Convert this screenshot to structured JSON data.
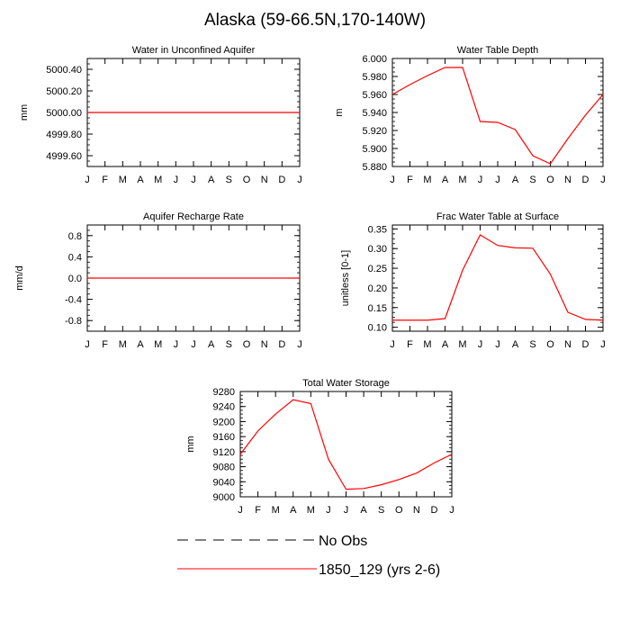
{
  "title": "Alaska (59-66.5N,170-140W)",
  "months": [
    "J",
    "F",
    "M",
    "A",
    "M",
    "J",
    "J",
    "A",
    "S",
    "O",
    "N",
    "D",
    "J"
  ],
  "colors": {
    "model": "#ff0000",
    "obs": "#000000",
    "axis": "#000000"
  },
  "chart_data": [
    {
      "type": "line",
      "title": "Water in Unconfined Aquifer",
      "ylabel": "mm",
      "ylim": [
        4999.5,
        5000.5
      ],
      "yticks": [
        "5000.40",
        "5000.20",
        "5000.00",
        "4999.80",
        "4999.60"
      ],
      "ytick_values": [
        5000.4,
        5000.2,
        5000.0,
        4999.8,
        4999.6
      ],
      "categories": [
        "J",
        "F",
        "M",
        "A",
        "M",
        "J",
        "J",
        "A",
        "S",
        "O",
        "N",
        "D",
        "J"
      ],
      "series": [
        {
          "name": "1850_129 (yrs 2-6)",
          "values": [
            5000,
            5000,
            5000,
            5000,
            5000,
            5000,
            5000,
            5000,
            5000,
            5000,
            5000,
            5000,
            5000
          ]
        }
      ]
    },
    {
      "type": "line",
      "title": "Water Table Depth",
      "ylabel": "m",
      "ylim": [
        5.88,
        6.0
      ],
      "yticks": [
        "6.000",
        "5.980",
        "5.960",
        "5.940",
        "5.920",
        "5.900",
        "5.880"
      ],
      "ytick_values": [
        6.0,
        5.98,
        5.96,
        5.94,
        5.92,
        5.9,
        5.88
      ],
      "categories": [
        "J",
        "F",
        "M",
        "A",
        "M",
        "J",
        "J",
        "A",
        "S",
        "O",
        "N",
        "D",
        "J"
      ],
      "series": [
        {
          "name": "1850_129 (yrs 2-6)",
          "values": [
            5.96,
            5.971,
            5.981,
            5.99,
            5.99,
            5.93,
            5.929,
            5.921,
            5.892,
            5.883,
            5.911,
            5.937,
            5.96
          ]
        }
      ]
    },
    {
      "type": "line",
      "title": "Aquifer Recharge Rate",
      "ylabel": "mm/d",
      "ylim": [
        -1.0,
        1.0
      ],
      "yticks": [
        "0.8",
        "0.4",
        "0.0",
        "-0.4",
        "-0.8"
      ],
      "ytick_values": [
        0.8,
        0.4,
        0.0,
        -0.4,
        -0.8
      ],
      "categories": [
        "J",
        "F",
        "M",
        "A",
        "M",
        "J",
        "J",
        "A",
        "S",
        "O",
        "N",
        "D",
        "J"
      ],
      "series": [
        {
          "name": "1850_129 (yrs 2-6)",
          "values": [
            0,
            0,
            0,
            0,
            0,
            0,
            0,
            0,
            0,
            0,
            0,
            0,
            0
          ]
        }
      ]
    },
    {
      "type": "line",
      "title": "Frac Water Table at Surface",
      "ylabel": "unitless [0-1]",
      "ylim": [
        0.09,
        0.36
      ],
      "yticks": [
        "0.35",
        "0.30",
        "0.25",
        "0.20",
        "0.15",
        "0.10"
      ],
      "ytick_values": [
        0.35,
        0.3,
        0.25,
        0.2,
        0.15,
        0.1
      ],
      "categories": [
        "J",
        "F",
        "M",
        "A",
        "M",
        "J",
        "J",
        "A",
        "S",
        "O",
        "N",
        "D",
        "J"
      ],
      "series": [
        {
          "name": "1850_129 (yrs 2-6)",
          "values": [
            0.118,
            0.118,
            0.118,
            0.122,
            0.245,
            0.335,
            0.308,
            0.302,
            0.301,
            0.235,
            0.138,
            0.12,
            0.118
          ]
        }
      ]
    },
    {
      "type": "line",
      "title": "Total Water Storage",
      "ylabel": "mm",
      "ylim": [
        9000,
        9280
      ],
      "yticks": [
        "9280",
        "9240",
        "9200",
        "9160",
        "9120",
        "9080",
        "9040",
        "9000"
      ],
      "ytick_values": [
        9280,
        9240,
        9200,
        9160,
        9120,
        9080,
        9040,
        9000
      ],
      "categories": [
        "J",
        "F",
        "M",
        "A",
        "M",
        "J",
        "J",
        "A",
        "S",
        "O",
        "N",
        "D",
        "J"
      ],
      "series": [
        {
          "name": "1850_129 (yrs 2-6)",
          "values": [
            9113,
            9175,
            9220,
            9258,
            9248,
            9100,
            9020,
            9022,
            9032,
            9046,
            9063,
            9090,
            9113
          ]
        }
      ]
    }
  ],
  "legend": [
    {
      "label": "No Obs",
      "style": "dashed",
      "color": "#000000"
    },
    {
      "label": "1850_129 (yrs 2-6)",
      "style": "solid",
      "color": "#ff0000"
    }
  ]
}
